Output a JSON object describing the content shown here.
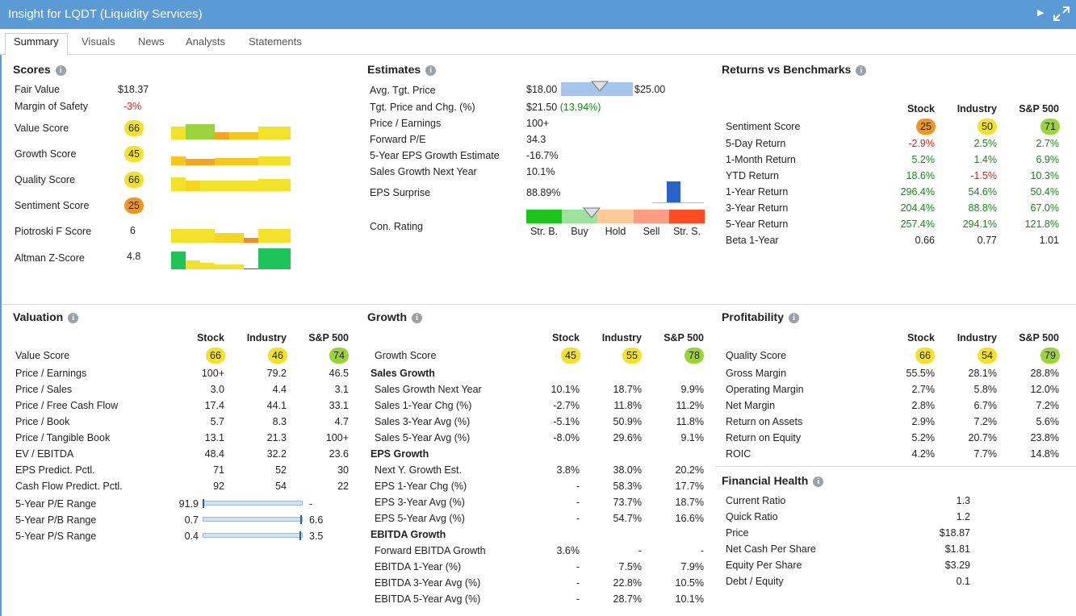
{
  "window": {
    "title": "Insight for LQDT (Liquidity Services)"
  },
  "tabs": [
    "Summary",
    "Visuals",
    "News",
    "Analysts",
    "Statements"
  ],
  "scores": {
    "title": "Scores",
    "fair_value_label": "Fair Value",
    "fair_value": "$18.37",
    "mos_label": "Margin of Safety",
    "mos": "-3%",
    "rows": [
      {
        "label": "Value Score",
        "value": "66",
        "color": "#f2e229"
      },
      {
        "label": "Growth Score",
        "value": "45",
        "color": "#f2e229"
      },
      {
        "label": "Quality Score",
        "value": "66",
        "color": "#f2e229"
      },
      {
        "label": "Sentiment Score",
        "value": "25",
        "color": "#f0961e"
      },
      {
        "label": "Piotroski F Score",
        "value": "6"
      },
      {
        "label": "Altman Z-Score",
        "value": "4.8"
      }
    ]
  },
  "estimates": {
    "title": "Estimates",
    "rows": [
      {
        "label": "Avg. Tgt. Price",
        "value": "$18.00"
      },
      {
        "label": "Tgt. Price and Chg. (%)",
        "value": "$21.50",
        "chg": "(13.94%)"
      },
      {
        "label": "Price / Earnings",
        "value": "100+"
      },
      {
        "label": "Forward P/E",
        "value": "34.3"
      },
      {
        "label": "5-Year EPS Growth Estimate",
        "value": "-16.7%"
      },
      {
        "label": "Sales Growth Next Year",
        "value": "10.1%"
      },
      {
        "label": "EPS Surprise",
        "value": "88.89%"
      },
      {
        "label": "Con. Rating",
        "value": ""
      }
    ],
    "tgt_high": "$25.00",
    "rating_labels": [
      "Str. B.",
      "Buy",
      "Hold",
      "Sell",
      "Str. S."
    ],
    "rating_colors": [
      "#1ec41e",
      "#9de39d",
      "#ffc999",
      "#ff9c84",
      "#ff4c22"
    ]
  },
  "returns": {
    "title": "Returns vs Benchmarks",
    "cols": [
      "Stock",
      "Industry",
      "S&P 500"
    ],
    "sentiment": {
      "label": "Sentiment Score",
      "values": [
        "25",
        "50",
        "71"
      ]
    },
    "rows": [
      {
        "label": "5-Day Return",
        "values": [
          "-2.9%",
          "2.5%",
          "2.7%"
        ]
      },
      {
        "label": "1-Month Return",
        "values": [
          "5.2%",
          "1.4%",
          "6.9%"
        ]
      },
      {
        "label": "YTD Return",
        "values": [
          "18.6%",
          "-1.5%",
          "10.3%"
        ]
      },
      {
        "label": "1-Year Return",
        "values": [
          "296.4%",
          "54.6%",
          "50.4%"
        ]
      },
      {
        "label": "3-Year Return",
        "values": [
          "204.4%",
          "88.8%",
          "67.0%"
        ]
      },
      {
        "label": "5-Year Return",
        "values": [
          "257.4%",
          "294.1%",
          "121.8%"
        ]
      },
      {
        "label": "Beta 1-Year",
        "values": [
          "0.66",
          "0.77",
          "1.01"
        ]
      }
    ]
  },
  "valuation": {
    "title": "Valuation",
    "cols": [
      "Stock",
      "Industry",
      "S&P 500"
    ],
    "score": {
      "label": "Value Score",
      "values": [
        "66",
        "46",
        "74"
      ]
    },
    "rows": [
      {
        "label": "Price / Earnings",
        "values": [
          "100+",
          "79.2",
          "46.5"
        ]
      },
      {
        "label": "Price / Sales",
        "values": [
          "3.0",
          "4.4",
          "3.1"
        ]
      },
      {
        "label": "Price / Free Cash Flow",
        "values": [
          "17.4",
          "44.1",
          "33.1"
        ]
      },
      {
        "label": "Price / Book",
        "values": [
          "5.7",
          "8.3",
          "4.7"
        ]
      },
      {
        "label": "Price / Tangible Book",
        "values": [
          "13.1",
          "21.3",
          "100+"
        ]
      },
      {
        "label": "EV / EBITDA",
        "values": [
          "48.4",
          "32.2",
          "23.6"
        ]
      },
      {
        "label": "EPS Predict. Pctl.",
        "values": [
          "71",
          "52",
          "30"
        ]
      },
      {
        "label": "Cash Flow Predict. Pctl.",
        "values": [
          "92",
          "54",
          "22"
        ]
      }
    ],
    "ranges": [
      {
        "label": "5-Year P/E Range",
        "low": "91.9",
        "high": "-",
        "pos": 0.0
      },
      {
        "label": "5-Year P/B Range",
        "low": "0.7",
        "high": "6.6",
        "pos": 1.0
      },
      {
        "label": "5-Year P/S Range",
        "low": "0.4",
        "high": "3.5",
        "pos": 1.0
      }
    ]
  },
  "growth": {
    "title": "Growth",
    "cols": [
      "Stock",
      "Industry",
      "S&P 500"
    ],
    "score": {
      "label": "Growth Score",
      "values": [
        "45",
        "55",
        "78"
      ]
    },
    "groups": [
      {
        "title": "Sales Growth",
        "rows": [
          {
            "label": "Sales Growth Next Year",
            "values": [
              "10.1%",
              "18.7%",
              "9.9%"
            ]
          },
          {
            "label": "Sales 1-Year Chg (%)",
            "values": [
              "-2.7%",
              "11.8%",
              "11.2%"
            ]
          },
          {
            "label": "Sales 3-Year Avg (%)",
            "values": [
              "-5.1%",
              "50.9%",
              "11.8%"
            ]
          },
          {
            "label": "Sales 5-Year Avg (%)",
            "values": [
              "-8.0%",
              "29.6%",
              "9.1%"
            ]
          }
        ]
      },
      {
        "title": "EPS Growth",
        "rows": [
          {
            "label": "Next Y. Growth Est.",
            "values": [
              "3.8%",
              "38.0%",
              "20.2%"
            ]
          },
          {
            "label": "EPS 1-Year Chg (%)",
            "values": [
              "-",
              "58.3%",
              "17.7%"
            ]
          },
          {
            "label": "EPS 3-Year Avg (%)",
            "values": [
              "-",
              "73.7%",
              "18.7%"
            ]
          },
          {
            "label": "EPS 5-Year Avg (%)",
            "values": [
              "-",
              "54.7%",
              "16.6%"
            ]
          }
        ]
      },
      {
        "title": "EBITDA Growth",
        "rows": [
          {
            "label": "Forward EBITDA Growth",
            "values": [
              "3.6%",
              "-",
              "-"
            ]
          },
          {
            "label": "EBITDA 1-Year (%)",
            "values": [
              "-",
              "7.5%",
              "7.9%"
            ]
          },
          {
            "label": "EBITDA 3-Year Avg (%)",
            "values": [
              "-",
              "22.8%",
              "10.5%"
            ]
          },
          {
            "label": "EBITDA 5-Year Avg (%)",
            "values": [
              "-",
              "28.7%",
              "10.1%"
            ]
          }
        ]
      }
    ]
  },
  "profitability": {
    "title": "Profitability",
    "cols": [
      "Stock",
      "Industry",
      "S&P 500"
    ],
    "score": {
      "label": "Quality Score",
      "values": [
        "66",
        "54",
        "79"
      ]
    },
    "rows": [
      {
        "label": "Gross Margin",
        "values": [
          "55.5%",
          "28.1%",
          "28.8%"
        ]
      },
      {
        "label": "Operating Margin",
        "values": [
          "2.7%",
          "5.8%",
          "12.0%"
        ]
      },
      {
        "label": "Net Margin",
        "values": [
          "2.8%",
          "6.7%",
          "7.2%"
        ]
      },
      {
        "label": "Return on Assets",
        "values": [
          "2.9%",
          "7.2%",
          "5.6%"
        ]
      },
      {
        "label": "Return on Equity",
        "values": [
          "5.2%",
          "20.7%",
          "23.8%"
        ]
      },
      {
        "label": "ROIC",
        "values": [
          "4.2%",
          "7.7%",
          "14.8%"
        ]
      }
    ]
  },
  "health": {
    "title": "Financial Health",
    "rows": [
      {
        "label": "Current Ratio",
        "value": "1.3"
      },
      {
        "label": "Quick Ratio",
        "value": "1.2"
      },
      {
        "label": "Price",
        "value": "$18.87"
      },
      {
        "label": "Net Cash Per Share",
        "value": "$1.81"
      },
      {
        "label": "Equity Per Share",
        "value": "$3.29"
      },
      {
        "label": "Debt / Equity",
        "value": "0.1"
      }
    ]
  }
}
